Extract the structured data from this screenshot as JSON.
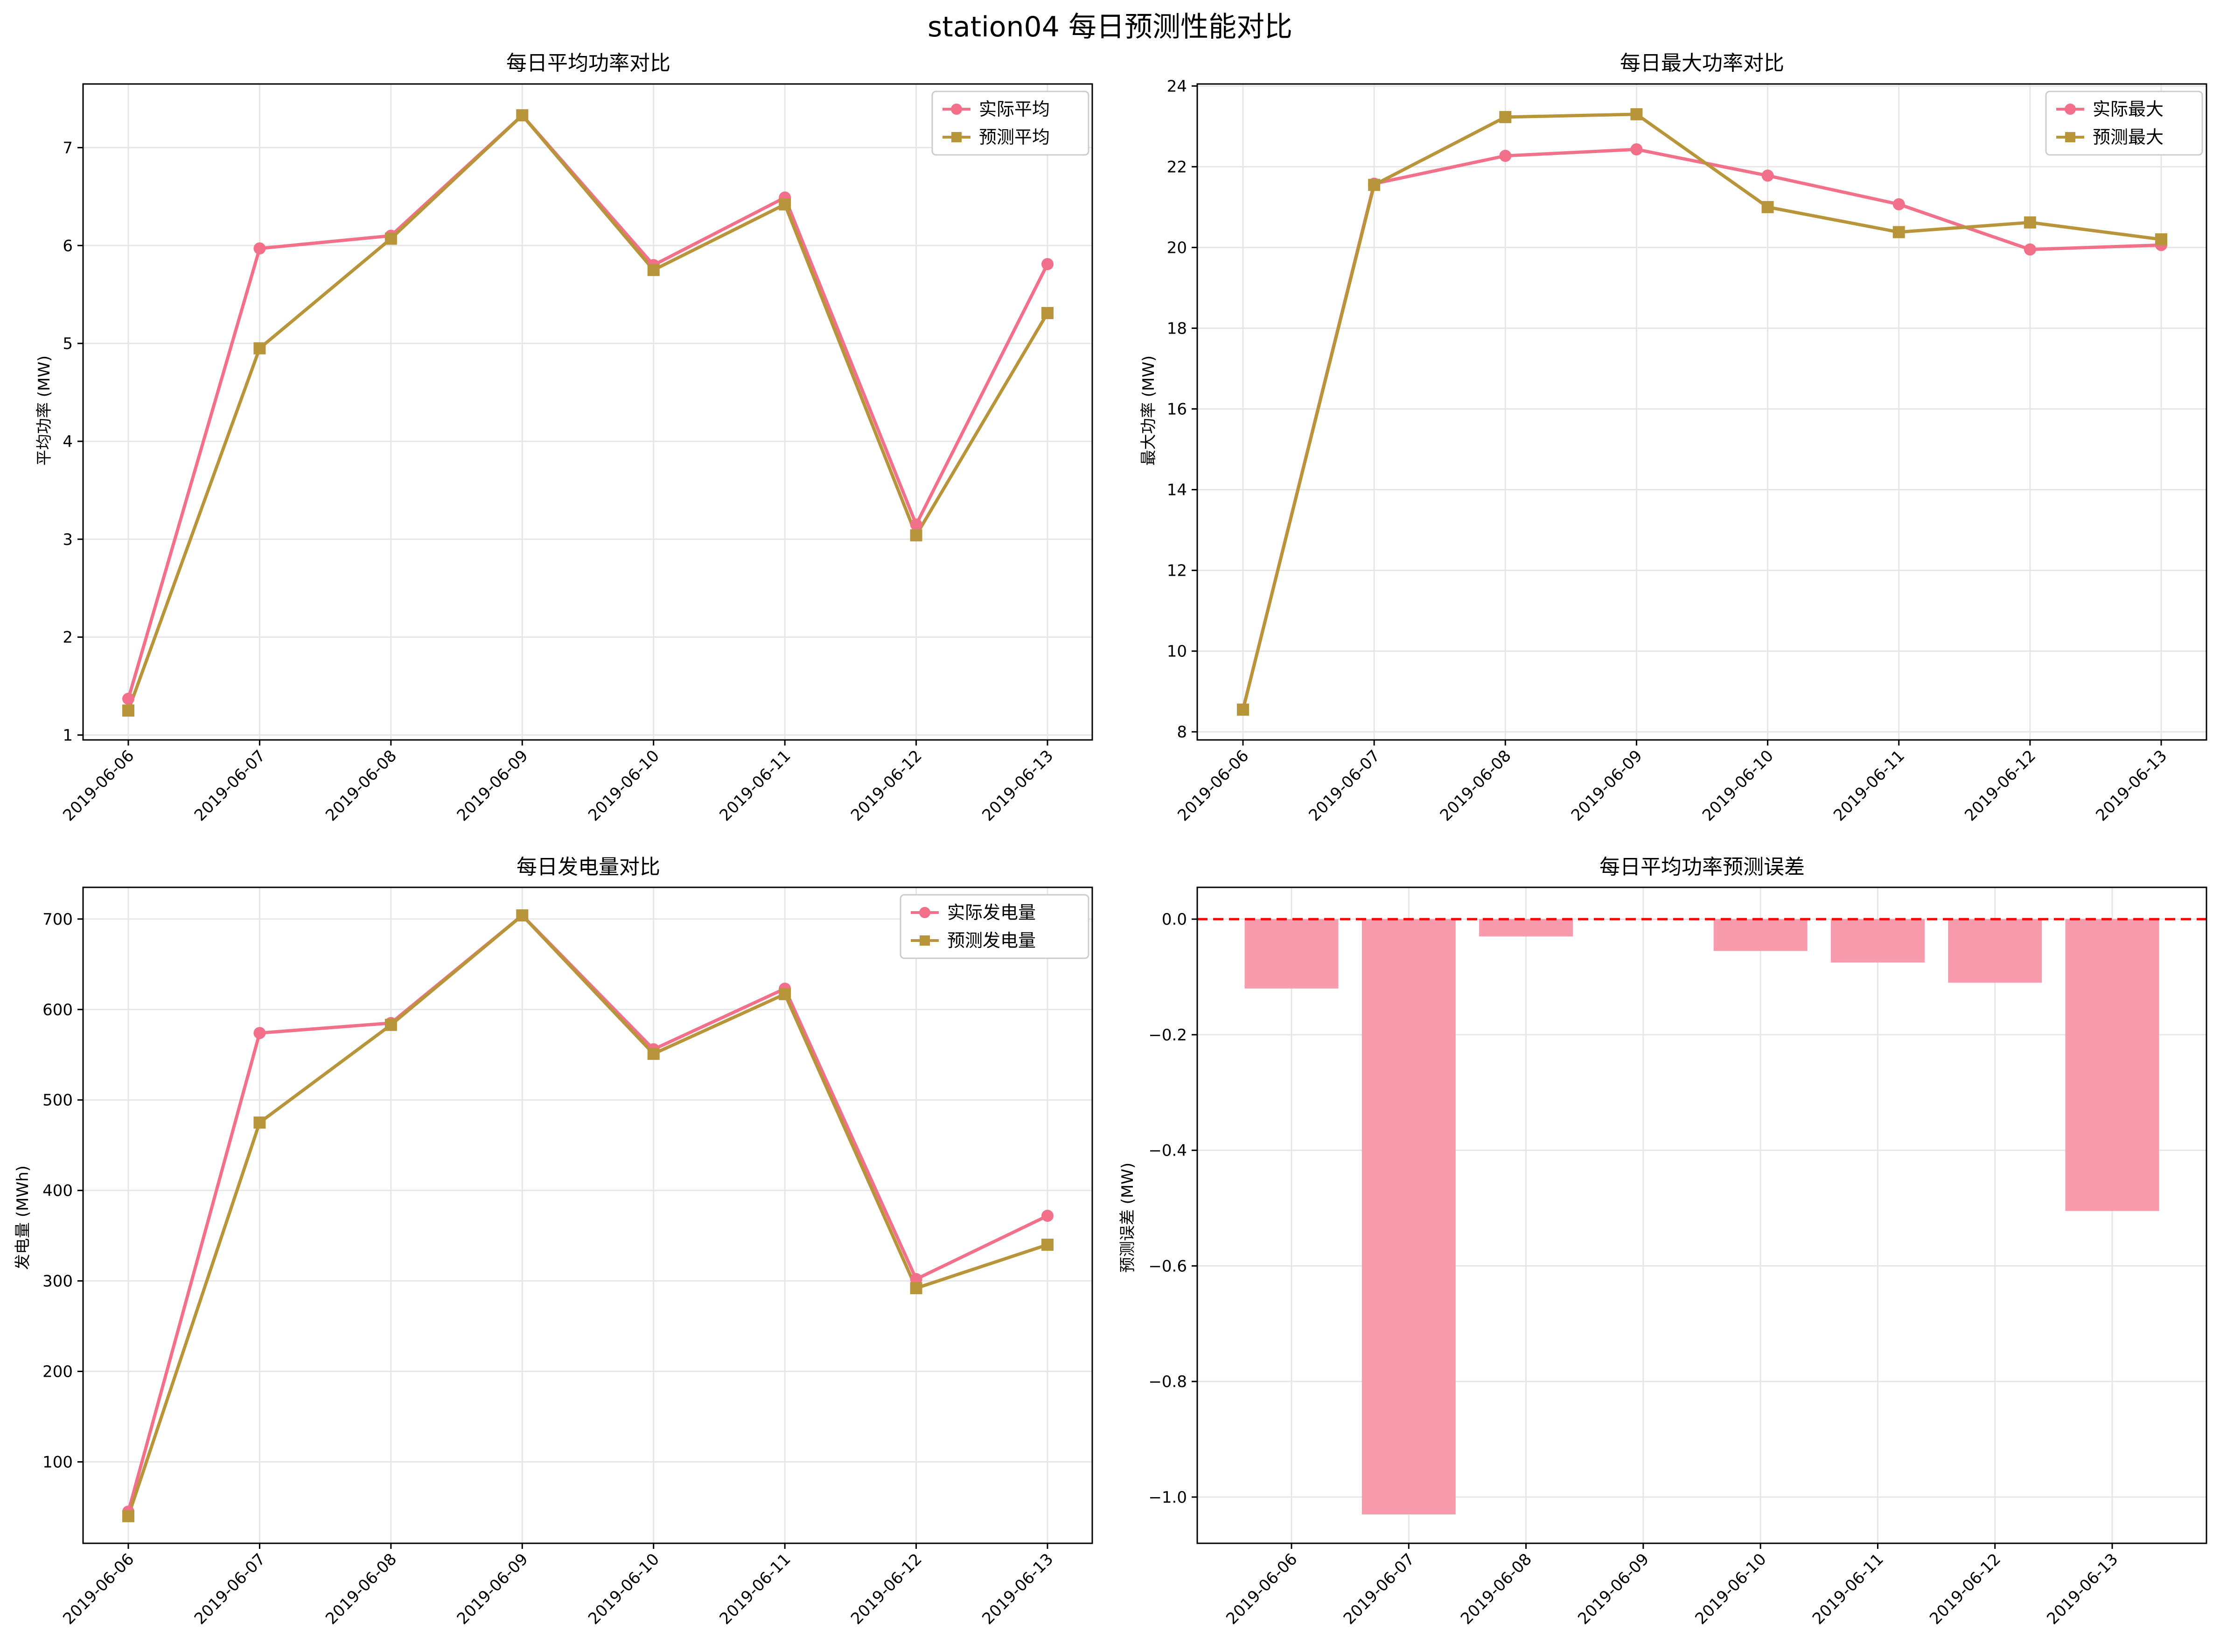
{
  "title": "station04 每日预测性能对比",
  "colors": {
    "actual": "#f2708a",
    "predicted": "#b8953a",
    "bar": "#f89bad",
    "zero_line": "#ff0000",
    "grid": "#e6e6e6"
  },
  "chart_data": [
    {
      "type": "line",
      "title": "每日平均功率对比",
      "ylabel": "平均功率 (MW)",
      "xlabel": "",
      "categories": [
        "2019-06-06",
        "2019-06-07",
        "2019-06-08",
        "2019-06-09",
        "2019-06-10",
        "2019-06-11",
        "2019-06-12",
        "2019-06-13"
      ],
      "series": [
        {
          "name": "实际平均",
          "marker": "circle",
          "values": [
            1.37,
            5.97,
            6.1,
            7.33,
            5.8,
            6.49,
            3.15,
            5.81
          ]
        },
        {
          "name": "预测平均",
          "marker": "square",
          "values": [
            1.25,
            4.95,
            6.07,
            7.33,
            5.75,
            6.42,
            3.04,
            5.31
          ]
        }
      ],
      "ylim": [
        0.95,
        7.65
      ],
      "yticks": [
        1,
        2,
        3,
        4,
        5,
        6,
        7
      ],
      "ytick_labels": [
        "1",
        "2",
        "3",
        "4",
        "5",
        "6",
        "7"
      ],
      "grid": true,
      "legend": "top-right"
    },
    {
      "type": "line",
      "title": "每日最大功率对比",
      "ylabel": "最大功率 (MW)",
      "xlabel": "",
      "categories": [
        "2019-06-06",
        "2019-06-07",
        "2019-06-08",
        "2019-06-09",
        "2019-06-10",
        "2019-06-11",
        "2019-06-12",
        "2019-06-13"
      ],
      "series": [
        {
          "name": "实际最大",
          "marker": "circle",
          "values": [
            8.55,
            21.58,
            22.27,
            22.43,
            21.78,
            21.07,
            19.95,
            20.06
          ]
        },
        {
          "name": "预测最大",
          "marker": "square",
          "values": [
            8.55,
            21.55,
            23.23,
            23.3,
            21.0,
            20.38,
            20.62,
            20.2
          ]
        }
      ],
      "ylim": [
        7.8,
        24.05
      ],
      "yticks": [
        8,
        10,
        12,
        14,
        16,
        18,
        20,
        22,
        24
      ],
      "ytick_labels": [
        "8",
        "10",
        "12",
        "14",
        "16",
        "18",
        "20",
        "22",
        "24"
      ],
      "grid": true,
      "legend": "top-right"
    },
    {
      "type": "line",
      "title": "每日发电量对比",
      "ylabel": "发电量 (MWh)",
      "xlabel": "",
      "categories": [
        "2019-06-06",
        "2019-06-07",
        "2019-06-08",
        "2019-06-09",
        "2019-06-10",
        "2019-06-11",
        "2019-06-12",
        "2019-06-13"
      ],
      "series": [
        {
          "name": "实际发电量",
          "marker": "circle",
          "values": [
            45,
            574,
            585,
            704,
            556,
            623,
            302,
            372
          ]
        },
        {
          "name": "预测发电量",
          "marker": "square",
          "values": [
            40,
            475,
            583,
            704,
            551,
            617,
            292,
            340
          ]
        }
      ],
      "ylim": [
        10,
        735
      ],
      "yticks": [
        100,
        200,
        300,
        400,
        500,
        600,
        700
      ],
      "ytick_labels": [
        "100",
        "200",
        "300",
        "400",
        "500",
        "600",
        "700"
      ],
      "grid": true,
      "legend": "top-right"
    },
    {
      "type": "bar",
      "title": "每日平均功率预测误差",
      "ylabel": "预测误差 (MW)",
      "xlabel": "",
      "categories": [
        "2019-06-06",
        "2019-06-07",
        "2019-06-08",
        "2019-06-09",
        "2019-06-10",
        "2019-06-11",
        "2019-06-12",
        "2019-06-13"
      ],
      "values": [
        -0.12,
        -1.03,
        -0.03,
        0.0,
        -0.055,
        -0.075,
        -0.11,
        -0.505
      ],
      "ylim": [
        -1.08,
        0.055
      ],
      "yticks": [
        0.0,
        -0.2,
        -0.4,
        -0.6,
        -0.8,
        -1.0
      ],
      "ytick_labels": [
        "0.0",
        "−0.2",
        "−0.4",
        "−0.6",
        "−0.8",
        "−1.0"
      ],
      "reference_line": 0,
      "grid": true
    }
  ]
}
